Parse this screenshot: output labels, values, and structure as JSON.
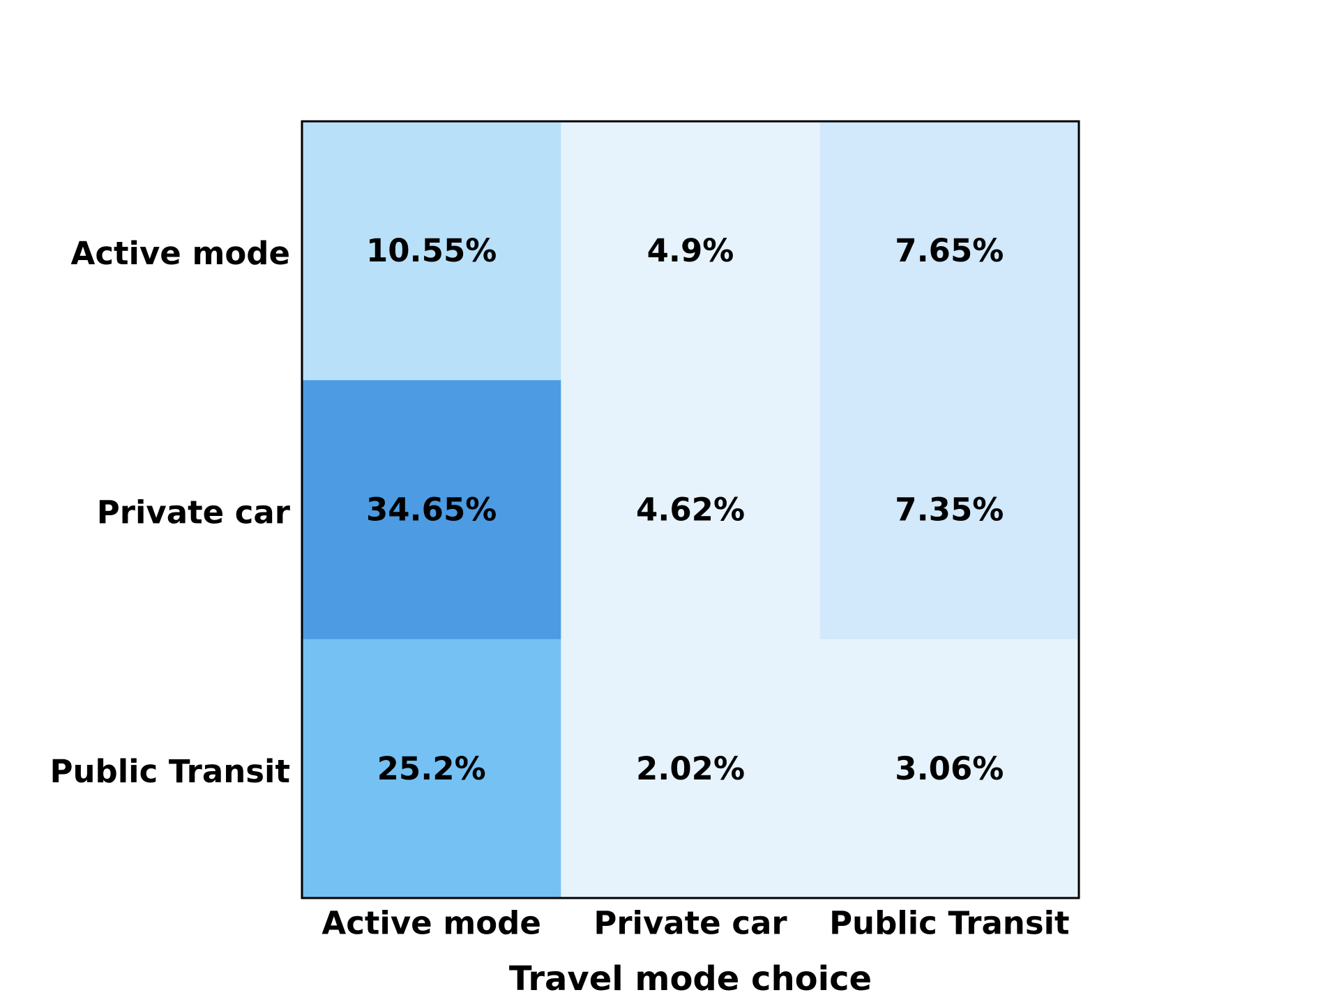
{
  "chart_data": {
    "type": "heatmap",
    "title": "",
    "xlabel": "Travel mode choice",
    "ylabel": "",
    "x_categories": [
      "Active mode",
      "Private car",
      "Public Transit"
    ],
    "y_categories": [
      "Active mode",
      "Private car",
      "Public Transit"
    ],
    "values": [
      [
        10.55,
        4.9,
        7.65
      ],
      [
        34.65,
        4.62,
        7.35
      ],
      [
        25.2,
        2.02,
        3.06
      ]
    ],
    "cell_labels": [
      [
        "10.55%",
        "4.9%",
        "7.65%"
      ],
      [
        "34.65%",
        "4.62%",
        "7.35%"
      ],
      [
        "25.2%",
        "2.02%",
        "3.06%"
      ]
    ],
    "colors": {
      "level_1": "#e6f3fd",
      "level_2": "#d2e8fb",
      "level_3": "#b9e0f9",
      "level_4": "#75c1f4",
      "level_5": "#4c9be3",
      "frame": "#000000",
      "text": "#000000"
    },
    "legend": "none",
    "grid": false
  }
}
